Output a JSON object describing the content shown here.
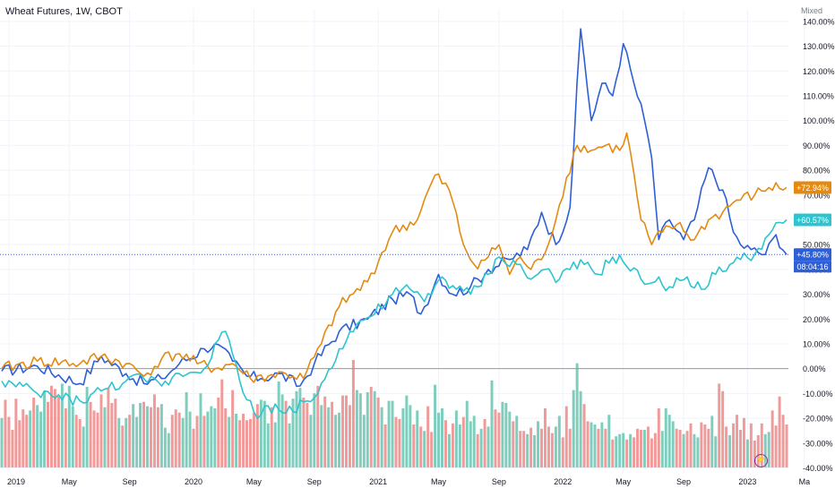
{
  "header": {
    "title": "Wheat Futures, 1W, CBOT",
    "scale_mode": "Mixed"
  },
  "colors": {
    "blue": "#2f5fd6",
    "orange": "#e48a11",
    "teal": "#2ec4cf",
    "vol_up": "#7fcdbd",
    "vol_down": "#f09a9a",
    "grid": "#f0f3fa",
    "axis_text": "#131722"
  },
  "icons": {
    "flash": "lightning-icon"
  },
  "chart_data": {
    "type": "line",
    "title": "Wheat Futures, 1W, CBOT",
    "y_unit": "%",
    "ylim": [
      -42,
      145
    ],
    "y_ticks": [
      "140.00%",
      "130.00%",
      "120.00%",
      "110.00%",
      "100.00%",
      "90.00%",
      "80.00%",
      "70.00%",
      "60.00%",
      "50.00%",
      "40.00%",
      "30.00%",
      "20.00%",
      "10.00%",
      "0.00%",
      "-10.00%",
      "-20.00%",
      "-30.00%",
      "-40.00%"
    ],
    "y_tick_values": [
      140,
      130,
      120,
      110,
      100,
      90,
      80,
      70,
      60,
      50,
      40,
      30,
      20,
      10,
      0,
      -10,
      -20,
      -30,
      -40
    ],
    "x_ticks": [
      "2019",
      "May",
      "Sep",
      "2020",
      "May",
      "Sep",
      "2021",
      "May",
      "Sep",
      "2022",
      "May",
      "Sep",
      "2023",
      "Ma"
    ],
    "x_tick_index": [
      2,
      19,
      36,
      54,
      71,
      88,
      106,
      123,
      140,
      158,
      175,
      192,
      210,
      226
    ],
    "grid": true,
    "legend": "none",
    "series": [
      {
        "color": "#2f5fd6",
        "last_label": "+45.80%",
        "countdown": "08:04:16",
        "anchors": [
          [
            0,
            -1
          ],
          [
            10,
            1
          ],
          [
            22,
            -6
          ],
          [
            28,
            5
          ],
          [
            35,
            -2
          ],
          [
            40,
            -6
          ],
          [
            45,
            -4
          ],
          [
            50,
            2
          ],
          [
            57,
            8
          ],
          [
            60,
            10
          ],
          [
            65,
            3
          ],
          [
            69,
            -3
          ],
          [
            73,
            -4
          ],
          [
            78,
            -2
          ],
          [
            84,
            -7
          ],
          [
            88,
            2
          ],
          [
            95,
            15
          ],
          [
            103,
            20
          ],
          [
            110,
            28
          ],
          [
            115,
            30
          ],
          [
            118,
            22
          ],
          [
            123,
            38
          ],
          [
            127,
            30
          ],
          [
            132,
            33
          ],
          [
            137,
            40
          ],
          [
            143,
            44
          ],
          [
            148,
            48
          ],
          [
            152,
            63
          ],
          [
            156,
            50
          ],
          [
            160,
            65
          ],
          [
            163,
            137
          ],
          [
            166,
            100
          ],
          [
            169,
            115
          ],
          [
            172,
            110
          ],
          [
            175,
            131
          ],
          [
            178,
            115
          ],
          [
            181,
            100
          ],
          [
            183,
            85
          ],
          [
            185,
            52
          ],
          [
            188,
            60
          ],
          [
            192,
            52
          ],
          [
            195,
            60
          ],
          [
            199,
            81
          ],
          [
            203,
            72
          ],
          [
            206,
            55
          ],
          [
            208,
            50
          ],
          [
            211,
            48
          ],
          [
            215,
            46
          ],
          [
            218,
            54
          ],
          [
            221,
            46
          ]
        ]
      },
      {
        "color": "#e48a11",
        "last_label": "+72.94%",
        "anchors": [
          [
            0,
            0
          ],
          [
            10,
            3
          ],
          [
            22,
            2
          ],
          [
            28,
            5
          ],
          [
            35,
            2
          ],
          [
            40,
            -3
          ],
          [
            45,
            4
          ],
          [
            50,
            6
          ],
          [
            55,
            2
          ],
          [
            60,
            0
          ],
          [
            65,
            2
          ],
          [
            70,
            -4
          ],
          [
            75,
            -3
          ],
          [
            80,
            -2
          ],
          [
            85,
            -4
          ],
          [
            90,
            10
          ],
          [
            95,
            25
          ],
          [
            103,
            35
          ],
          [
            110,
            55
          ],
          [
            117,
            60
          ],
          [
            122,
            78
          ],
          [
            126,
            72
          ],
          [
            130,
            50
          ],
          [
            133,
            42
          ],
          [
            137,
            45
          ],
          [
            140,
            50
          ],
          [
            143,
            38
          ],
          [
            146,
            45
          ],
          [
            149,
            40
          ],
          [
            152,
            44
          ],
          [
            156,
            60
          ],
          [
            159,
            77
          ],
          [
            162,
            90
          ],
          [
            166,
            88
          ],
          [
            170,
            90
          ],
          [
            174,
            88
          ],
          [
            176,
            95
          ],
          [
            180,
            60
          ],
          [
            183,
            50
          ],
          [
            186,
            55
          ],
          [
            190,
            58
          ],
          [
            195,
            52
          ],
          [
            199,
            60
          ],
          [
            203,
            63
          ],
          [
            207,
            68
          ],
          [
            212,
            70
          ],
          [
            216,
            73
          ],
          [
            221,
            73
          ]
        ]
      },
      {
        "color": "#2ec4cf",
        "last_label": "+60.57%",
        "anchors": [
          [
            0,
            -5
          ],
          [
            10,
            -10
          ],
          [
            22,
            -13
          ],
          [
            28,
            -9
          ],
          [
            35,
            -5
          ],
          [
            40,
            -4
          ],
          [
            45,
            -7
          ],
          [
            50,
            -2
          ],
          [
            57,
            0
          ],
          [
            60,
            10
          ],
          [
            63,
            15
          ],
          [
            67,
            -5
          ],
          [
            72,
            -20
          ],
          [
            75,
            -15
          ],
          [
            80,
            -18
          ],
          [
            86,
            -13
          ],
          [
            89,
            -10
          ],
          [
            95,
            8
          ],
          [
            100,
            18
          ],
          [
            105,
            22
          ],
          [
            110,
            30
          ],
          [
            115,
            32
          ],
          [
            119,
            27
          ],
          [
            124,
            37
          ],
          [
            128,
            32
          ],
          [
            132,
            30
          ],
          [
            137,
            38
          ],
          [
            140,
            45
          ],
          [
            145,
            42
          ],
          [
            149,
            36
          ],
          [
            153,
            40
          ],
          [
            157,
            36
          ],
          [
            160,
            40
          ],
          [
            164,
            42
          ],
          [
            168,
            38
          ],
          [
            172,
            45
          ],
          [
            175,
            43
          ],
          [
            180,
            36
          ],
          [
            184,
            35
          ],
          [
            188,
            33
          ],
          [
            193,
            37
          ],
          [
            197,
            32
          ],
          [
            201,
            38
          ],
          [
            205,
            42
          ],
          [
            208,
            44
          ],
          [
            212,
            46
          ],
          [
            216,
            54
          ],
          [
            221,
            60
          ]
        ]
      }
    ],
    "volume": {
      "up_color": "#7fcdbd",
      "down_color": "#f09a9a",
      "values": [
        0.46,
        0.63,
        0.47,
        0.35,
        0.64,
        0.44,
        0.54,
        0.49,
        0.53,
        0.65,
        0.58,
        0.52,
        0.71,
        0.61,
        0.76,
        0.73,
        0.66,
        0.78,
        0.55,
        0.76,
        0.57,
        0.49,
        0.45,
        0.38,
        0.75,
        0.61,
        0.53,
        0.51,
        0.68,
        0.56,
        0.74,
        0.6,
        0.64,
        0.46,
        0.39,
        0.46,
        0.49,
        0.59,
        0.47,
        0.6,
        0.61,
        0.57,
        0.56,
        0.68,
        0.56,
        0.59,
        0.37,
        0.32,
        0.49,
        0.54,
        0.51,
        0.46,
        0.7,
        0.52,
        0.36,
        0.48,
        0.69,
        0.48,
        0.52,
        0.57,
        0.55,
        0.65,
        0.82,
        0.55,
        0.47,
        0.72,
        0.5,
        0.44,
        0.5,
        0.44,
        0.45,
        0.51,
        0.59,
        0.63,
        0.62,
        0.41,
        0.56,
        0.42,
        0.8,
        0.68,
        0.62,
        0.41,
        0.64,
        0.71,
        0.74,
        0.65,
        0.6,
        0.49,
        0.69,
        0.76,
        0.58,
        0.66,
        0.56,
        0.61,
        0.49,
        0.51,
        0.67,
        0.67,
        0.58,
        1.0,
        0.72,
        0.69,
        0.49,
        0.7,
        0.75,
        0.71,
        0.65,
        0.56,
        0.4,
        0.62,
        0.62,
        0.47,
        0.45,
        0.55,
        0.67,
        0.58,
        0.4,
        0.53,
        0.38,
        0.34,
        0.57,
        0.33,
        0.77,
        0.51,
        0.55,
        0.44,
        0.31,
        0.41,
        0.53,
        0.4,
        0.47,
        0.62,
        0.43,
        0.48,
        0.31,
        0.36,
        0.45,
        0.38,
        0.81,
        0.54,
        0.51,
        0.61,
        0.6,
        0.52,
        0.43,
        0.48,
        0.34,
        0.34,
        0.31,
        0.37,
        0.3,
        0.43,
        0.36,
        0.55,
        0.38,
        0.32,
        0.38,
        0.48,
        0.28,
        0.57,
        0.36,
        0.72,
        0.97,
        0.71,
        0.59,
        0.43,
        0.42,
        0.4,
        0.36,
        0.42,
        0.36,
        0.49,
        0.26,
        0.29,
        0.31,
        0.32,
        0.26,
        0.31,
        0.28,
        0.36,
        0.35,
        0.35,
        0.38,
        0.27,
        0.32,
        0.55,
        0.34,
        0.55,
        0.49,
        0.43,
        0.36,
        0.35,
        0.31,
        0.34,
        0.41,
        0.31,
        0.28,
        0.42,
        0.4,
        0.36,
        0.48,
        0.29,
        0.78,
        0.71,
        0.38,
        0.3,
        0.41,
        0.49,
        0.35,
        0.46,
        0.26,
        0.41,
        0.25,
        0.3,
        0.41,
        0.31,
        0.33,
        0.53,
        0.39,
        0.66,
        0.49,
        0.4
      ],
      "up": [
        1,
        0,
        0,
        0,
        0,
        0,
        0,
        0,
        1,
        0,
        1,
        1,
        1,
        0,
        0,
        0,
        0,
        1,
        0,
        1,
        1,
        0,
        0,
        1,
        1,
        0,
        0,
        0,
        0,
        1,
        0,
        0,
        0,
        1,
        0,
        1,
        0,
        1,
        1,
        1,
        0,
        1,
        0,
        0,
        0,
        1,
        1,
        1,
        0,
        0,
        0,
        1,
        1,
        1,
        0,
        0,
        1,
        0,
        1,
        1,
        1,
        0,
        0,
        0,
        1,
        0,
        1,
        0,
        0,
        0,
        0,
        0,
        0,
        1,
        1,
        1,
        0,
        1,
        1,
        1,
        0,
        1,
        1,
        1,
        1,
        0,
        0,
        1,
        1,
        0,
        1,
        0,
        1,
        0,
        1,
        1,
        0,
        0,
        0,
        0,
        1,
        1,
        1,
        1,
        0,
        1,
        0,
        1,
        0,
        1,
        1,
        0,
        0,
        1,
        1,
        1,
        0,
        1,
        0,
        1,
        0,
        0,
        1,
        1,
        1,
        0,
        1,
        0,
        1,
        1,
        0,
        1,
        1,
        1,
        0,
        1,
        0,
        1,
        1,
        0,
        0,
        1,
        1,
        1,
        0,
        1,
        0,
        0,
        1,
        0,
        1,
        1,
        0,
        0,
        0,
        0,
        1,
        1,
        0,
        0,
        0,
        1,
        1,
        1,
        0,
        0,
        1,
        1,
        0,
        1,
        0,
        1,
        0,
        1,
        1,
        1,
        0,
        1,
        0,
        0,
        0,
        1,
        0,
        0,
        0,
        0,
        1,
        1,
        1,
        1,
        0,
        0,
        1,
        0,
        0,
        1,
        1,
        0,
        0,
        0,
        1,
        1,
        0,
        0,
        0,
        1,
        0,
        0,
        0,
        0,
        1,
        0,
        0,
        0,
        0,
        1,
        1,
        0,
        0,
        0,
        0,
        0
      ]
    }
  }
}
